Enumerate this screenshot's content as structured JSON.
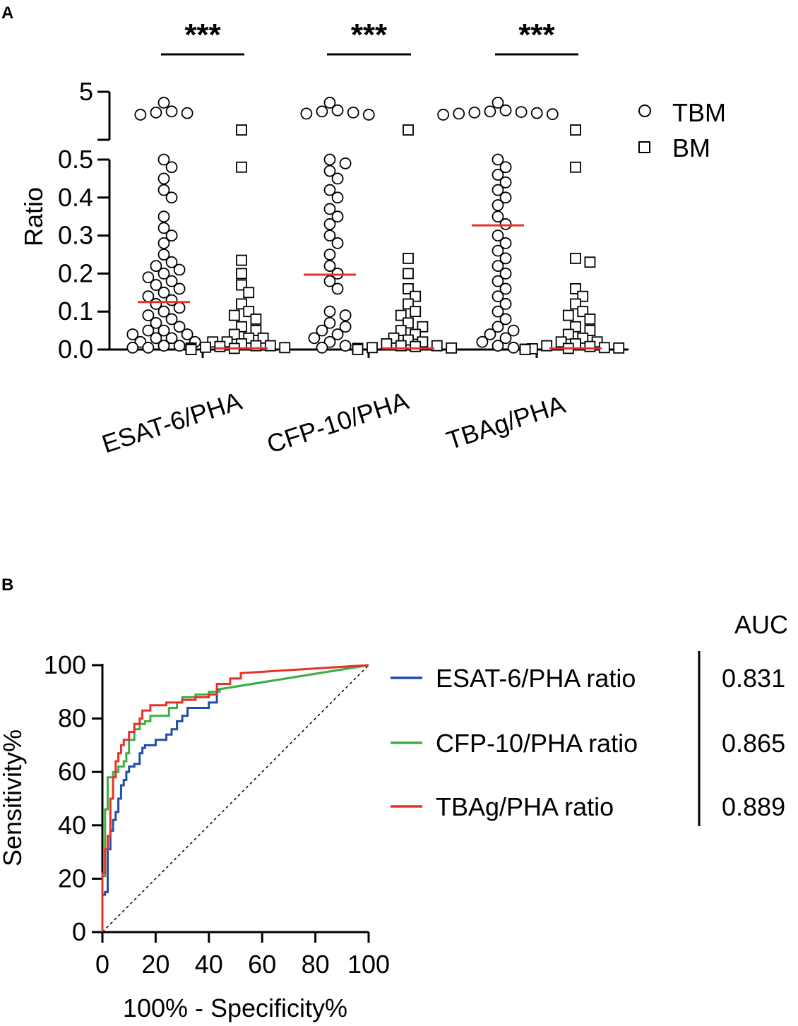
{
  "chart_data": [
    {
      "panel": "A",
      "type": "scatter",
      "ylabel": "Ratio",
      "y_lower_segment": [
        0.0,
        0.5
      ],
      "y_upper_segment": [
        0.6,
        5
      ],
      "y_ticks": [
        "0.0",
        "0.1",
        "0.2",
        "0.3",
        "0.4",
        "0.5",
        "5"
      ],
      "categories": [
        "ESAT-6/PHA",
        "CFP-10/PHA",
        "TBAg/PHA"
      ],
      "series": [
        {
          "name": "TBM",
          "marker": "circle"
        },
        {
          "name": "BM",
          "marker": "square"
        }
      ],
      "significance": [
        "***",
        "***",
        "***"
      ],
      "groups": [
        {
          "category": "ESAT-6/PHA",
          "series": "TBM",
          "median": 0.125,
          "values": [
            4.0,
            3.2,
            3.1,
            3.05,
            2.9,
            0.5,
            0.48,
            0.45,
            0.42,
            0.4,
            0.35,
            0.32,
            0.3,
            0.28,
            0.25,
            0.23,
            0.22,
            0.21,
            0.2,
            0.19,
            0.18,
            0.17,
            0.16,
            0.15,
            0.14,
            0.13,
            0.12,
            0.11,
            0.1,
            0.09,
            0.08,
            0.07,
            0.06,
            0.05,
            0.05,
            0.04,
            0.04,
            0.03,
            0.03,
            0.02,
            0.02,
            0.01,
            0.01,
            0.005,
            0.005
          ]
        },
        {
          "category": "ESAT-6/PHA",
          "series": "BM",
          "median": 0.003,
          "values": [
            1.5,
            0.48,
            0.235,
            0.2,
            0.17,
            0.15,
            0.12,
            0.1,
            0.09,
            0.08,
            0.06,
            0.05,
            0.04,
            0.03,
            0.03,
            0.02,
            0.02,
            0.015,
            0.01,
            0.01,
            0.008,
            0.006,
            0.005,
            0.004,
            0.003,
            0.002,
            0.002,
            0.001,
            0.001,
            0.0
          ]
        },
        {
          "category": "CFP-10/PHA",
          "series": "TBM",
          "median": 0.197,
          "values": [
            4.0,
            3.3,
            3.2,
            3.1,
            3.0,
            2.9,
            0.5,
            0.49,
            0.47,
            0.45,
            0.42,
            0.4,
            0.37,
            0.35,
            0.33,
            0.3,
            0.28,
            0.25,
            0.22,
            0.2,
            0.18,
            0.16,
            0.1,
            0.09,
            0.07,
            0.06,
            0.05,
            0.04,
            0.03,
            0.02,
            0.01,
            0.005
          ]
        },
        {
          "category": "CFP-10/PHA",
          "series": "BM",
          "median": 0.003,
          "values": [
            1.5,
            0.24,
            0.2,
            0.16,
            0.14,
            0.12,
            0.1,
            0.09,
            0.07,
            0.06,
            0.05,
            0.04,
            0.03,
            0.025,
            0.02,
            0.015,
            0.01,
            0.01,
            0.008,
            0.005,
            0.004,
            0.003,
            0.002,
            0.001,
            0.0
          ]
        },
        {
          "category": "TBAg/PHA",
          "series": "TBM",
          "median": 0.327,
          "values": [
            4.0,
            3.3,
            3.2,
            3.15,
            3.1,
            3.05,
            3.0,
            2.95,
            2.9,
            0.5,
            0.48,
            0.46,
            0.44,
            0.42,
            0.4,
            0.38,
            0.35,
            0.33,
            0.3,
            0.28,
            0.26,
            0.24,
            0.22,
            0.2,
            0.18,
            0.16,
            0.14,
            0.12,
            0.1,
            0.08,
            0.06,
            0.05,
            0.04,
            0.03,
            0.02,
            0.01,
            0.005
          ]
        },
        {
          "category": "TBAg/PHA",
          "series": "BM",
          "median": 0.003,
          "values": [
            1.5,
            0.48,
            0.24,
            0.23,
            0.16,
            0.14,
            0.12,
            0.1,
            0.09,
            0.08,
            0.06,
            0.05,
            0.04,
            0.03,
            0.02,
            0.02,
            0.015,
            0.01,
            0.008,
            0.005,
            0.004,
            0.003,
            0.002,
            0.001,
            0.0
          ]
        }
      ]
    },
    {
      "panel": "B",
      "type": "line",
      "xlabel": "100% - Specificity%",
      "ylabel": "Sensitivity%",
      "xlim": [
        0,
        100
      ],
      "ylim": [
        0,
        100
      ],
      "x_ticks": [
        "0",
        "20",
        "40",
        "60",
        "80",
        "100"
      ],
      "y_ticks": [
        "0",
        "20",
        "40",
        "60",
        "80",
        "100"
      ],
      "auc_header": "AUC",
      "reference_line": {
        "style": "dashed",
        "from": [
          0,
          0
        ],
        "to": [
          100,
          100
        ]
      },
      "series": [
        {
          "name": "ESAT-6/PHA ratio",
          "color": "#1f4fa8",
          "auc": "0.831",
          "points": [
            [
              0,
              0
            ],
            [
              0,
              14
            ],
            [
              1,
              14
            ],
            [
              1,
              15
            ],
            [
              2,
              15
            ],
            [
              2,
              31
            ],
            [
              3,
              31
            ],
            [
              3,
              38
            ],
            [
              4,
              38
            ],
            [
              4,
              42
            ],
            [
              5,
              42
            ],
            [
              5,
              45
            ],
            [
              6,
              45
            ],
            [
              6,
              50
            ],
            [
              7,
              50
            ],
            [
              7,
              55
            ],
            [
              8,
              55
            ],
            [
              8,
              57
            ],
            [
              9,
              57
            ],
            [
              9,
              60
            ],
            [
              10,
              60
            ],
            [
              10,
              62
            ],
            [
              12,
              62
            ],
            [
              12,
              63
            ],
            [
              14,
              63
            ],
            [
              14,
              67
            ],
            [
              15,
              67
            ],
            [
              15,
              69
            ],
            [
              16,
              69
            ],
            [
              16,
              70
            ],
            [
              20,
              70
            ],
            [
              20,
              72
            ],
            [
              24,
              72
            ],
            [
              24,
              74
            ],
            [
              26,
              74
            ],
            [
              26,
              76
            ],
            [
              28,
              76
            ],
            [
              28,
              79
            ],
            [
              30,
              79
            ],
            [
              30,
              81
            ],
            [
              32,
              81
            ],
            [
              32,
              84
            ],
            [
              40,
              84
            ],
            [
              40,
              86
            ],
            [
              43,
              86
            ],
            [
              43,
              91
            ],
            [
              44,
              91
            ],
            [
              100,
              100
            ]
          ]
        },
        {
          "name": "CFP-10/PHA ratio",
          "color": "#3cb043",
          "auc": "0.865",
          "points": [
            [
              0,
              0
            ],
            [
              0,
              21
            ],
            [
              1,
              21
            ],
            [
              1,
              46
            ],
            [
              2,
              46
            ],
            [
              2,
              58
            ],
            [
              4,
              58
            ],
            [
              4,
              60
            ],
            [
              6,
              60
            ],
            [
              6,
              62
            ],
            [
              8,
              62
            ],
            [
              8,
              64
            ],
            [
              9,
              64
            ],
            [
              9,
              67
            ],
            [
              10,
              67
            ],
            [
              10,
              72
            ],
            [
              12,
              72
            ],
            [
              12,
              76
            ],
            [
              14,
              76
            ],
            [
              14,
              78
            ],
            [
              16,
              78
            ],
            [
              16,
              79
            ],
            [
              18,
              79
            ],
            [
              18,
              81
            ],
            [
              20,
              81
            ],
            [
              20,
              81
            ],
            [
              25,
              81
            ],
            [
              25,
              84
            ],
            [
              28,
              84
            ],
            [
              28,
              86
            ],
            [
              30,
              86
            ],
            [
              30,
              88
            ],
            [
              35,
              88
            ],
            [
              35,
              89
            ],
            [
              40,
              89
            ],
            [
              40,
              90
            ],
            [
              44,
              90
            ],
            [
              44,
              91
            ],
            [
              100,
              100
            ]
          ]
        },
        {
          "name": "TBAg/PHA ratio",
          "color": "#e8302a",
          "auc": "0.889",
          "points": [
            [
              0,
              0
            ],
            [
              0,
              22
            ],
            [
              1,
              22
            ],
            [
              1,
              31
            ],
            [
              2,
              31
            ],
            [
              2,
              36
            ],
            [
              3,
              36
            ],
            [
              3,
              50
            ],
            [
              4,
              50
            ],
            [
              4,
              58
            ],
            [
              5,
              58
            ],
            [
              5,
              64
            ],
            [
              6,
              64
            ],
            [
              6,
              67
            ],
            [
              7,
              67
            ],
            [
              7,
              70
            ],
            [
              8,
              70
            ],
            [
              8,
              72
            ],
            [
              10,
              72
            ],
            [
              10,
              75
            ],
            [
              12,
              75
            ],
            [
              12,
              78
            ],
            [
              14,
              78
            ],
            [
              14,
              80
            ],
            [
              15,
              80
            ],
            [
              15,
              83
            ],
            [
              18,
              83
            ],
            [
              18,
              85
            ],
            [
              24,
              85
            ],
            [
              24,
              86
            ],
            [
              30,
              86
            ],
            [
              30,
              87
            ],
            [
              35,
              87
            ],
            [
              35,
              88
            ],
            [
              40,
              88
            ],
            [
              40,
              89
            ],
            [
              43,
              89
            ],
            [
              43,
              93
            ],
            [
              48,
              93
            ],
            [
              48,
              95
            ],
            [
              52,
              95
            ],
            [
              52,
              97
            ],
            [
              100,
              100
            ]
          ]
        }
      ]
    }
  ]
}
